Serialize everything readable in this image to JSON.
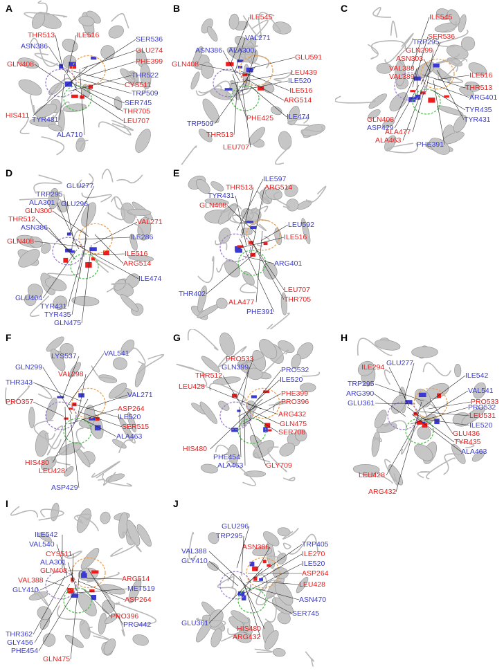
{
  "colors": {
    "red": "#ee1c1c",
    "blue": "#3a3ad0",
    "orange": "#e8a050",
    "purple": "#9a7ccc",
    "green": "#4cc04c",
    "protein": "#b7b7b7"
  },
  "panels": [
    {
      "id": "A",
      "labels": [
        {
          "t": "THR513",
          "c": "red"
        },
        {
          "t": "ILE516",
          "c": "red"
        },
        {
          "t": "SER536",
          "c": "blue"
        },
        {
          "t": "ASN386",
          "c": "blue"
        },
        {
          "t": "GLU274",
          "c": "red"
        },
        {
          "t": "PHE399",
          "c": "red"
        },
        {
          "t": "GLN408",
          "c": "red"
        },
        {
          "t": "THR522",
          "c": "blue"
        },
        {
          "t": "CYS511",
          "c": "red"
        },
        {
          "t": "TRP509",
          "c": "blue"
        },
        {
          "t": "SER745",
          "c": "blue"
        },
        {
          "t": "HIS411",
          "c": "red"
        },
        {
          "t": "TYR481",
          "c": "blue"
        },
        {
          "t": "THR705",
          "c": "red"
        },
        {
          "t": "LEU707",
          "c": "red"
        },
        {
          "t": "ALA710",
          "c": "blue"
        }
      ]
    },
    {
      "id": "B",
      "labels": [
        {
          "t": "ILE545",
          "c": "red"
        },
        {
          "t": "VAL271",
          "c": "blue"
        },
        {
          "t": "ASN386",
          "c": "blue"
        },
        {
          "t": "ALA300",
          "c": "blue"
        },
        {
          "t": "GLU591",
          "c": "red"
        },
        {
          "t": "GLN408",
          "c": "red"
        },
        {
          "t": "LEU439",
          "c": "red"
        },
        {
          "t": "ILE520",
          "c": "blue"
        },
        {
          "t": "ILE516",
          "c": "red"
        },
        {
          "t": "ARG514",
          "c": "red"
        },
        {
          "t": "ILE474",
          "c": "blue"
        },
        {
          "t": "TRP509",
          "c": "blue"
        },
        {
          "t": "PHE425",
          "c": "red"
        },
        {
          "t": "THR513",
          "c": "red"
        },
        {
          "t": "LEU707",
          "c": "red"
        }
      ]
    },
    {
      "id": "C",
      "labels": [
        {
          "t": "ILE545",
          "c": "red"
        },
        {
          "t": "SER536",
          "c": "red"
        },
        {
          "t": "TRP295",
          "c": "blue"
        },
        {
          "t": "GLN299",
          "c": "red"
        },
        {
          "t": "ASN303",
          "c": "red"
        },
        {
          "t": "ILE516",
          "c": "red"
        },
        {
          "t": "VAL388",
          "c": "red"
        },
        {
          "t": "VAL389",
          "c": "red"
        },
        {
          "t": "THR513",
          "c": "red"
        },
        {
          "t": "ARG401",
          "c": "blue"
        },
        {
          "t": "TYR435",
          "c": "blue"
        },
        {
          "t": "TYR431",
          "c": "blue"
        },
        {
          "t": "GLN408",
          "c": "red"
        },
        {
          "t": "ASP429",
          "c": "blue"
        },
        {
          "t": "ALA477",
          "c": "red"
        },
        {
          "t": "ALA463",
          "c": "red"
        },
        {
          "t": "PHE391",
          "c": "blue"
        }
      ]
    },
    {
      "id": "D",
      "labels": [
        {
          "t": "GLU277",
          "c": "blue"
        },
        {
          "t": "TRP295",
          "c": "blue"
        },
        {
          "t": "ALA301",
          "c": "blue"
        },
        {
          "t": "GLU296",
          "c": "blue"
        },
        {
          "t": "GLN300",
          "c": "red"
        },
        {
          "t": "VAL271",
          "c": "red"
        },
        {
          "t": "THR512",
          "c": "red"
        },
        {
          "t": "ASN386",
          "c": "blue"
        },
        {
          "t": "ILE286",
          "c": "blue"
        },
        {
          "t": "GLN408",
          "c": "red"
        },
        {
          "t": "ILE516",
          "c": "red"
        },
        {
          "t": "ARG514",
          "c": "red"
        },
        {
          "t": "ILE474",
          "c": "blue"
        },
        {
          "t": "GLU404",
          "c": "blue"
        },
        {
          "t": "TYR431",
          "c": "blue"
        },
        {
          "t": "TYR435",
          "c": "blue"
        },
        {
          "t": "GLN475",
          "c": "blue"
        }
      ]
    },
    {
      "id": "E",
      "labels": [
        {
          "t": "ILE597",
          "c": "blue"
        },
        {
          "t": "THR513",
          "c": "red"
        },
        {
          "t": "TYR431",
          "c": "blue"
        },
        {
          "t": "ARG514",
          "c": "red"
        },
        {
          "t": "GLN408",
          "c": "red"
        },
        {
          "t": "LEU592",
          "c": "blue"
        },
        {
          "t": "ILE516",
          "c": "red"
        },
        {
          "t": "ARG401",
          "c": "blue"
        },
        {
          "t": "LEU707",
          "c": "red"
        },
        {
          "t": "THR705",
          "c": "red"
        },
        {
          "t": "THR402",
          "c": "blue"
        },
        {
          "t": "ALA477",
          "c": "red"
        },
        {
          "t": "PHE391",
          "c": "blue"
        }
      ]
    },
    {
      "id": "F",
      "labels": [
        {
          "t": "LYS537",
          "c": "blue"
        },
        {
          "t": "VAL541",
          "c": "blue"
        },
        {
          "t": "GLN299",
          "c": "blue"
        },
        {
          "t": "VAL298",
          "c": "red"
        },
        {
          "t": "THR343",
          "c": "blue"
        },
        {
          "t": "VAL271",
          "c": "blue"
        },
        {
          "t": "PRO357",
          "c": "red"
        },
        {
          "t": "ASP264",
          "c": "red"
        },
        {
          "t": "ILE520",
          "c": "blue"
        },
        {
          "t": "SER515",
          "c": "red"
        },
        {
          "t": "ALA463",
          "c": "blue"
        },
        {
          "t": "HIS480",
          "c": "red"
        },
        {
          "t": "LEU428",
          "c": "red"
        },
        {
          "t": "ASP429",
          "c": "blue"
        }
      ]
    },
    {
      "id": "G",
      "labels": [
        {
          "t": "PRO533",
          "c": "red"
        },
        {
          "t": "GLN399",
          "c": "blue"
        },
        {
          "t": "PRO532",
          "c": "blue"
        },
        {
          "t": "THR512",
          "c": "red"
        },
        {
          "t": "ILE520",
          "c": "blue"
        },
        {
          "t": "LEU428",
          "c": "red"
        },
        {
          "t": "PHE399",
          "c": "red"
        },
        {
          "t": "PRO396",
          "c": "red"
        },
        {
          "t": "ARG432",
          "c": "red"
        },
        {
          "t": "GLN475",
          "c": "red"
        },
        {
          "t": "SER708",
          "c": "red"
        },
        {
          "t": "HIS480",
          "c": "red"
        },
        {
          "t": "PHE454",
          "c": "blue"
        },
        {
          "t": "ALA463",
          "c": "blue"
        },
        {
          "t": "GLY709",
          "c": "red"
        }
      ]
    },
    {
      "id": "H",
      "labels": [
        {
          "t": "GLU277",
          "c": "blue"
        },
        {
          "t": "ILE294",
          "c": "red"
        },
        {
          "t": "ILE542",
          "c": "blue"
        },
        {
          "t": "VAL541",
          "c": "blue"
        },
        {
          "t": "TRP295",
          "c": "blue"
        },
        {
          "t": "PRO533",
          "c": "red"
        },
        {
          "t": "ARG390",
          "c": "blue"
        },
        {
          "t": "PRO532",
          "c": "blue"
        },
        {
          "t": "GLU361",
          "c": "blue"
        },
        {
          "t": "LEU531",
          "c": "red"
        },
        {
          "t": "ILE520",
          "c": "blue"
        },
        {
          "t": "GLU436",
          "c": "red"
        },
        {
          "t": "TYR435",
          "c": "red"
        },
        {
          "t": "ALA463",
          "c": "blue"
        },
        {
          "t": "LEU428",
          "c": "red"
        },
        {
          "t": "ARG432",
          "c": "red"
        }
      ]
    },
    {
      "id": "I",
      "labels": [
        {
          "t": "ILE542",
          "c": "blue"
        },
        {
          "t": "VAL540",
          "c": "blue"
        },
        {
          "t": "CYS511",
          "c": "red"
        },
        {
          "t": "ALA301",
          "c": "blue"
        },
        {
          "t": "GLN408",
          "c": "red"
        },
        {
          "t": "ARG514",
          "c": "red"
        },
        {
          "t": "VAL388",
          "c": "red"
        },
        {
          "t": "MET519",
          "c": "blue"
        },
        {
          "t": "GLY410",
          "c": "blue"
        },
        {
          "t": "ASP264",
          "c": "red"
        },
        {
          "t": "PRO396",
          "c": "red"
        },
        {
          "t": "PRO442",
          "c": "blue"
        },
        {
          "t": "THR362",
          "c": "blue"
        },
        {
          "t": "GLY456",
          "c": "blue"
        },
        {
          "t": "PHE454",
          "c": "blue"
        },
        {
          "t": "GLN475",
          "c": "red"
        }
      ]
    },
    {
      "id": "J",
      "labels": [
        {
          "t": "GLU296",
          "c": "blue"
        },
        {
          "t": "TRP295",
          "c": "blue"
        },
        {
          "t": "TRP405",
          "c": "blue"
        },
        {
          "t": "VAL388",
          "c": "blue"
        },
        {
          "t": "ASN386",
          "c": "red"
        },
        {
          "t": "ILE270",
          "c": "red"
        },
        {
          "t": "GLY410",
          "c": "blue"
        },
        {
          "t": "ILE520",
          "c": "blue"
        },
        {
          "t": "ASP264",
          "c": "red"
        },
        {
          "t": "LEU428",
          "c": "red"
        },
        {
          "t": "ASN470",
          "c": "blue"
        },
        {
          "t": "GLU361",
          "c": "blue"
        },
        {
          "t": "HIS480",
          "c": "red"
        },
        {
          "t": "ARG432",
          "c": "red"
        },
        {
          "t": "SER745",
          "c": "blue"
        }
      ]
    }
  ]
}
